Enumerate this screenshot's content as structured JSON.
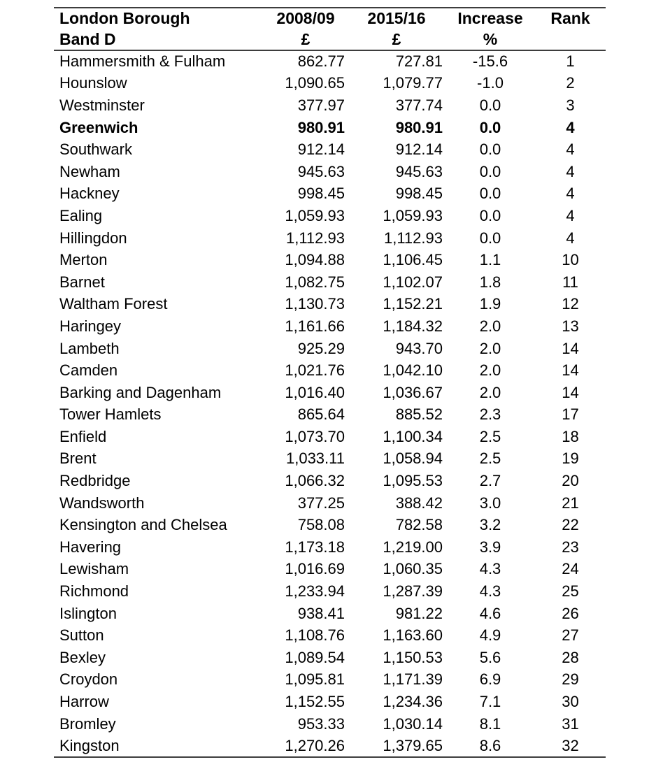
{
  "page": {
    "background_color": "#ffffff",
    "text_color": "#000000",
    "rule_color": "#3d3d3d"
  },
  "table": {
    "columns": {
      "borough": {
        "line1": "London Borough",
        "line2": "Band D"
      },
      "y2008": {
        "line1": "2008/09",
        "line2": "£"
      },
      "y2015": {
        "line1": "2015/16",
        "line2": "£"
      },
      "increase": {
        "line1": "Increase",
        "line2": "%"
      },
      "rank": {
        "line1": "Rank",
        "line2": ""
      }
    },
    "highlighted_borough": "Greenwich",
    "rows": [
      {
        "borough": "Hammersmith & Fulham",
        "y2008": "862.77",
        "y2015": "727.81",
        "increase": "-15.6",
        "rank": "1",
        "bold": false
      },
      {
        "borough": "Hounslow",
        "y2008": "1,090.65",
        "y2015": "1,079.77",
        "increase": "-1.0",
        "rank": "2",
        "bold": false
      },
      {
        "borough": "Westminster",
        "y2008": "377.97",
        "y2015": "377.74",
        "increase": "0.0",
        "rank": "3",
        "bold": false
      },
      {
        "borough": "Greenwich",
        "y2008": "980.91",
        "y2015": "980.91",
        "increase": "0.0",
        "rank": "4",
        "bold": true
      },
      {
        "borough": "Southwark",
        "y2008": "912.14",
        "y2015": "912.14",
        "increase": "0.0",
        "rank": "4",
        "bold": false
      },
      {
        "borough": "Newham",
        "y2008": "945.63",
        "y2015": "945.63",
        "increase": "0.0",
        "rank": "4",
        "bold": false
      },
      {
        "borough": "Hackney",
        "y2008": "998.45",
        "y2015": "998.45",
        "increase": "0.0",
        "rank": "4",
        "bold": false
      },
      {
        "borough": "Ealing",
        "y2008": "1,059.93",
        "y2015": "1,059.93",
        "increase": "0.0",
        "rank": "4",
        "bold": false
      },
      {
        "borough": "Hillingdon",
        "y2008": "1,112.93",
        "y2015": "1,112.93",
        "increase": "0.0",
        "rank": "4",
        "bold": false
      },
      {
        "borough": "Merton",
        "y2008": "1,094.88",
        "y2015": "1,106.45",
        "increase": "1.1",
        "rank": "10",
        "bold": false
      },
      {
        "borough": "Barnet",
        "y2008": "1,082.75",
        "y2015": "1,102.07",
        "increase": "1.8",
        "rank": "11",
        "bold": false
      },
      {
        "borough": "Waltham Forest",
        "y2008": "1,130.73",
        "y2015": "1,152.21",
        "increase": "1.9",
        "rank": "12",
        "bold": false
      },
      {
        "borough": "Haringey",
        "y2008": "1,161.66",
        "y2015": "1,184.32",
        "increase": "2.0",
        "rank": "13",
        "bold": false
      },
      {
        "borough": "Lambeth",
        "y2008": "925.29",
        "y2015": "943.70",
        "increase": "2.0",
        "rank": "14",
        "bold": false
      },
      {
        "borough": "Camden",
        "y2008": "1,021.76",
        "y2015": "1,042.10",
        "increase": "2.0",
        "rank": "14",
        "bold": false
      },
      {
        "borough": "Barking and Dagenham",
        "y2008": "1,016.40",
        "y2015": "1,036.67",
        "increase": "2.0",
        "rank": "14",
        "bold": false
      },
      {
        "borough": "Tower Hamlets",
        "y2008": "865.64",
        "y2015": "885.52",
        "increase": "2.3",
        "rank": "17",
        "bold": false
      },
      {
        "borough": "Enfield",
        "y2008": "1,073.70",
        "y2015": "1,100.34",
        "increase": "2.5",
        "rank": "18",
        "bold": false
      },
      {
        "borough": "Brent",
        "y2008": "1,033.11",
        "y2015": "1,058.94",
        "increase": "2.5",
        "rank": "19",
        "bold": false
      },
      {
        "borough": "Redbridge",
        "y2008": "1,066.32",
        "y2015": "1,095.53",
        "increase": "2.7",
        "rank": "20",
        "bold": false
      },
      {
        "borough": "Wandsworth",
        "y2008": "377.25",
        "y2015": "388.42",
        "increase": "3.0",
        "rank": "21",
        "bold": false
      },
      {
        "borough": "Kensington and Chelsea",
        "y2008": "758.08",
        "y2015": "782.58",
        "increase": "3.2",
        "rank": "22",
        "bold": false
      },
      {
        "borough": "Havering",
        "y2008": "1,173.18",
        "y2015": "1,219.00",
        "increase": "3.9",
        "rank": "23",
        "bold": false
      },
      {
        "borough": "Lewisham",
        "y2008": "1,016.69",
        "y2015": "1,060.35",
        "increase": "4.3",
        "rank": "24",
        "bold": false
      },
      {
        "borough": "Richmond",
        "y2008": "1,233.94",
        "y2015": "1,287.39",
        "increase": "4.3",
        "rank": "25",
        "bold": false
      },
      {
        "borough": "Islington",
        "y2008": "938.41",
        "y2015": "981.22",
        "increase": "4.6",
        "rank": "26",
        "bold": false
      },
      {
        "borough": "Sutton",
        "y2008": "1,108.76",
        "y2015": "1,163.60",
        "increase": "4.9",
        "rank": "27",
        "bold": false
      },
      {
        "borough": "Bexley",
        "y2008": "1,089.54",
        "y2015": "1,150.53",
        "increase": "5.6",
        "rank": "28",
        "bold": false
      },
      {
        "borough": "Croydon",
        "y2008": "1,095.81",
        "y2015": "1,171.39",
        "increase": "6.9",
        "rank": "29",
        "bold": false
      },
      {
        "borough": "Harrow",
        "y2008": "1,152.55",
        "y2015": "1,234.36",
        "increase": "7.1",
        "rank": "30",
        "bold": false
      },
      {
        "borough": "Bromley",
        "y2008": "953.33",
        "y2015": "1,030.14",
        "increase": "8.1",
        "rank": "31",
        "bold": false
      },
      {
        "borough": "Kingston",
        "y2008": "1,270.26",
        "y2015": "1,379.65",
        "increase": "8.6",
        "rank": "32",
        "bold": false
      }
    ]
  }
}
